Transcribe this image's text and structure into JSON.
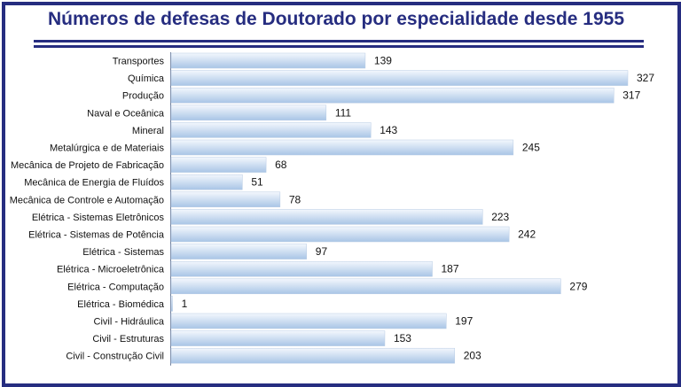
{
  "chart_data": {
    "type": "bar",
    "orientation": "horizontal",
    "title": "Números de defesas de Doutorado por especialidade desde 1955",
    "categories": [
      "Transportes",
      "Química",
      "Produção",
      "Naval e Oceânica",
      "Mineral",
      "Metalúrgica e de Materiais",
      "Mecânica de Projeto de Fabricação",
      "Mecânica de Energia de Fluídos",
      "Mecânica de Controle e Automação",
      "Elétrica - Sistemas Eletrônicos",
      "Elétrica - Sistemas de Potência",
      "Elétrica - Sistemas",
      "Elétrica - Microeletrônica",
      "Elétrica - Computação",
      "Elétrica - Biomédica",
      "Civil - Hidráulica",
      "Civil - Estruturas",
      "Civil - Construção Civil"
    ],
    "values": [
      139,
      327,
      317,
      111,
      143,
      245,
      68,
      51,
      78,
      223,
      242,
      97,
      187,
      279,
      1,
      197,
      153,
      203
    ],
    "xlim": [
      0,
      327
    ],
    "grid": false,
    "legend": "none",
    "colors": {
      "bar_light": "#eef4fc",
      "bar_dark": "#a9c5e6",
      "frame": "#262d80",
      "title": "#262d80"
    }
  }
}
